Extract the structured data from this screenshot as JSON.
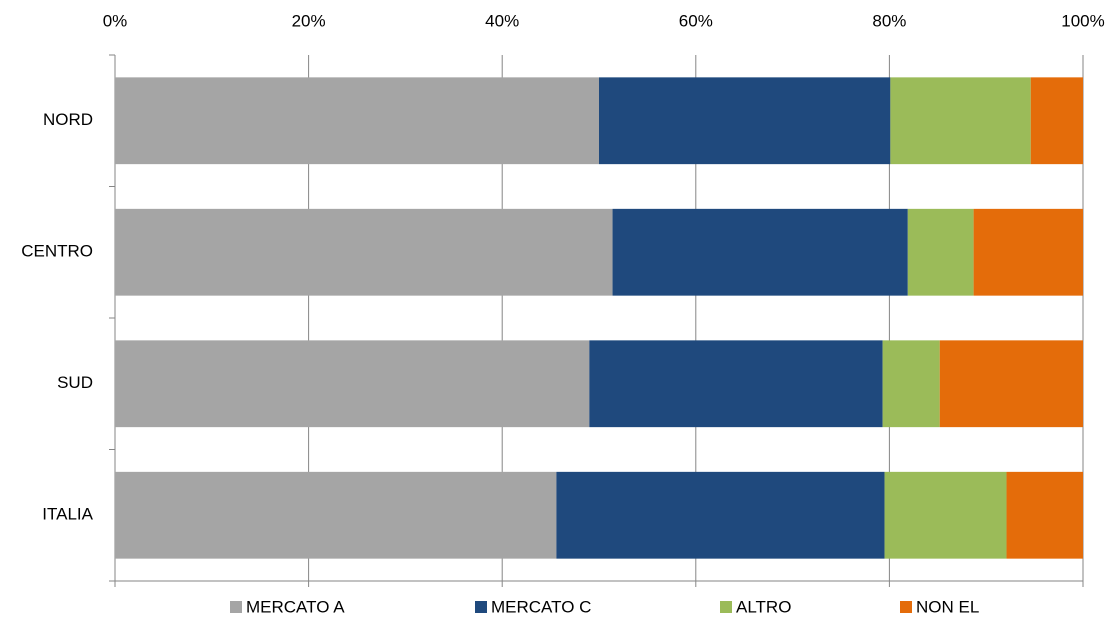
{
  "chart_data": {
    "type": "stacked-bar-horizontal",
    "categories": [
      "NORD",
      "CENTRO",
      "SUD",
      "ITALIA"
    ],
    "series": [
      {
        "name": "MERCATO A",
        "color": "#a5a5a5",
        "values": [
          50.0,
          51.4,
          49.0,
          45.6
        ]
      },
      {
        "name": "MERCATO C",
        "color": "#1f497d",
        "values": [
          30.1,
          30.5,
          30.3,
          33.9
        ]
      },
      {
        "name": "ALTRO",
        "color": "#9bbb59",
        "values": [
          14.5,
          6.8,
          5.9,
          12.6
        ]
      },
      {
        "name": "NON EL",
        "color": "#e46c0a",
        "values": [
          5.4,
          11.3,
          14.8,
          7.9
        ]
      }
    ],
    "xlim": [
      0,
      100
    ],
    "xticks": [
      {
        "value": 0,
        "label": "0%"
      },
      {
        "value": 20,
        "label": "20%"
      },
      {
        "value": 40,
        "label": "40%"
      },
      {
        "value": 60,
        "label": "60%"
      },
      {
        "value": 80,
        "label": "80%"
      },
      {
        "value": 100,
        "label": "100%"
      }
    ],
    "grid": true,
    "legend": "bottom"
  }
}
